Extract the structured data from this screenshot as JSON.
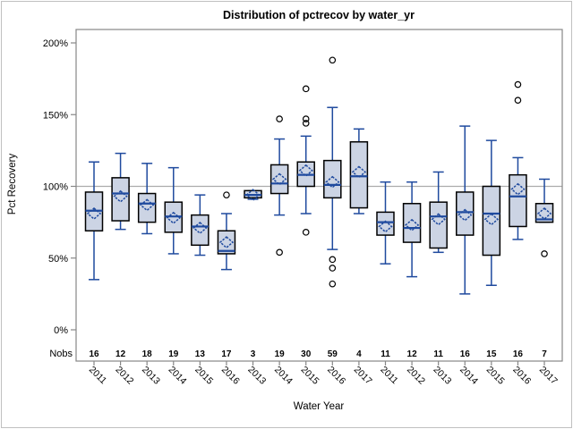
{
  "chart_data": {
    "type": "box",
    "title": "Distribution of pctrecov by water_yr",
    "xlabel": "Water Year",
    "ylabel": "Pct Recovery",
    "nobs_label": "Nobs",
    "ylim": [
      0,
      209
    ],
    "grid": "reference line at 100% only",
    "reference_line": 100,
    "y_ticks": [
      {
        "value": 0,
        "label": "0%"
      },
      {
        "value": 50,
        "label": "50%"
      },
      {
        "value": 100,
        "label": "100%"
      },
      {
        "value": 150,
        "label": "150%"
      },
      {
        "value": 200,
        "label": "200%"
      }
    ],
    "categories": [
      "2011",
      "2012",
      "2013",
      "2014",
      "2015",
      "2016",
      "2013",
      "2014",
      "2015",
      "2016",
      "2017",
      "2011",
      "2012",
      "2013",
      "2014",
      "2015",
      "2016",
      "2017"
    ],
    "nobs": [
      16,
      12,
      18,
      19,
      13,
      17,
      3,
      19,
      30,
      59,
      4,
      11,
      12,
      11,
      16,
      15,
      16,
      7
    ],
    "boxes": [
      {
        "year": "2011",
        "nobs": 16,
        "low": 35,
        "q1": 69,
        "median": 83,
        "q3": 96,
        "high": 117,
        "mean": 81,
        "outliers": []
      },
      {
        "year": "2012",
        "nobs": 12,
        "low": 70,
        "q1": 76,
        "median": 95,
        "q3": 106,
        "high": 123,
        "mean": 93,
        "outliers": []
      },
      {
        "year": "2013",
        "nobs": 18,
        "low": 67,
        "q1": 75,
        "median": 88,
        "q3": 95,
        "high": 116,
        "mean": 87,
        "outliers": []
      },
      {
        "year": "2014",
        "nobs": 19,
        "low": 53,
        "q1": 68,
        "median": 79,
        "q3": 89,
        "high": 113,
        "mean": 78,
        "outliers": []
      },
      {
        "year": "2015",
        "nobs": 13,
        "low": 52,
        "q1": 59,
        "median": 72,
        "q3": 80,
        "high": 94,
        "mean": 71,
        "outliers": []
      },
      {
        "year": "2016",
        "nobs": 17,
        "low": 42,
        "q1": 53,
        "median": 55,
        "q3": 69,
        "high": 81,
        "mean": 61,
        "outliers": [
          94
        ]
      },
      {
        "year": "2013",
        "nobs": 3,
        "low": 91,
        "q1": 92,
        "median": 94,
        "q3": 97,
        "high": 97,
        "mean": 94,
        "outliers": []
      },
      {
        "year": "2014",
        "nobs": 19,
        "low": 80,
        "q1": 95,
        "median": 102,
        "q3": 115,
        "high": 133,
        "mean": 105,
        "outliers": [
          147,
          54
        ]
      },
      {
        "year": "2015",
        "nobs": 30,
        "low": 81,
        "q1": 100,
        "median": 108,
        "q3": 117,
        "high": 135,
        "mean": 111,
        "outliers": [
          168,
          147,
          144,
          68
        ]
      },
      {
        "year": "2016",
        "nobs": 59,
        "low": 56,
        "q1": 92,
        "median": 101,
        "q3": 118,
        "high": 155,
        "mean": 103,
        "outliers": [
          188,
          49,
          43,
          32
        ]
      },
      {
        "year": "2017",
        "nobs": 4,
        "low": 81,
        "q1": 85,
        "median": 107,
        "q3": 131,
        "high": 140,
        "mean": 110,
        "outliers": []
      },
      {
        "year": "2011",
        "nobs": 11,
        "low": 46,
        "q1": 66,
        "median": 75,
        "q3": 82,
        "high": 103,
        "mean": 72,
        "outliers": []
      },
      {
        "year": "2012",
        "nobs": 12,
        "low": 37,
        "q1": 61,
        "median": 71,
        "q3": 88,
        "high": 103,
        "mean": 73,
        "outliers": []
      },
      {
        "year": "2013",
        "nobs": 11,
        "low": 54,
        "q1": 57,
        "median": 79,
        "q3": 89,
        "high": 110,
        "mean": 77,
        "outliers": []
      },
      {
        "year": "2014",
        "nobs": 16,
        "low": 25,
        "q1": 66,
        "median": 82,
        "q3": 96,
        "high": 142,
        "mean": 80,
        "outliers": []
      },
      {
        "year": "2015",
        "nobs": 15,
        "low": 31,
        "q1": 52,
        "median": 81,
        "q3": 100,
        "high": 132,
        "mean": 77,
        "outliers": []
      },
      {
        "year": "2016",
        "nobs": 16,
        "low": 63,
        "q1": 72,
        "median": 93,
        "q3": 108,
        "high": 120,
        "mean": 98,
        "outliers": [
          171,
          160
        ]
      },
      {
        "year": "2017",
        "nobs": 7,
        "low": 75,
        "q1": 75,
        "median": 77,
        "q3": 88,
        "high": 105,
        "mean": 81,
        "outliers": [
          53
        ]
      }
    ],
    "legend_position": "none",
    "marker_meaning": {
      "diamond": "mean",
      "line": "median",
      "circle": "outlier"
    }
  },
  "colors": {
    "box_fill": "#ccd4e4",
    "box_border": "#000000",
    "whisker": "#1f4a9e",
    "median": "#1f4a9e",
    "mean_marker": "#1f4a9e",
    "outlier": "#000000",
    "reference_line": "#ababab",
    "frame": "#878787",
    "text": "#000000",
    "figure_border": "#c0c0c0",
    "background": "#ffffff"
  }
}
